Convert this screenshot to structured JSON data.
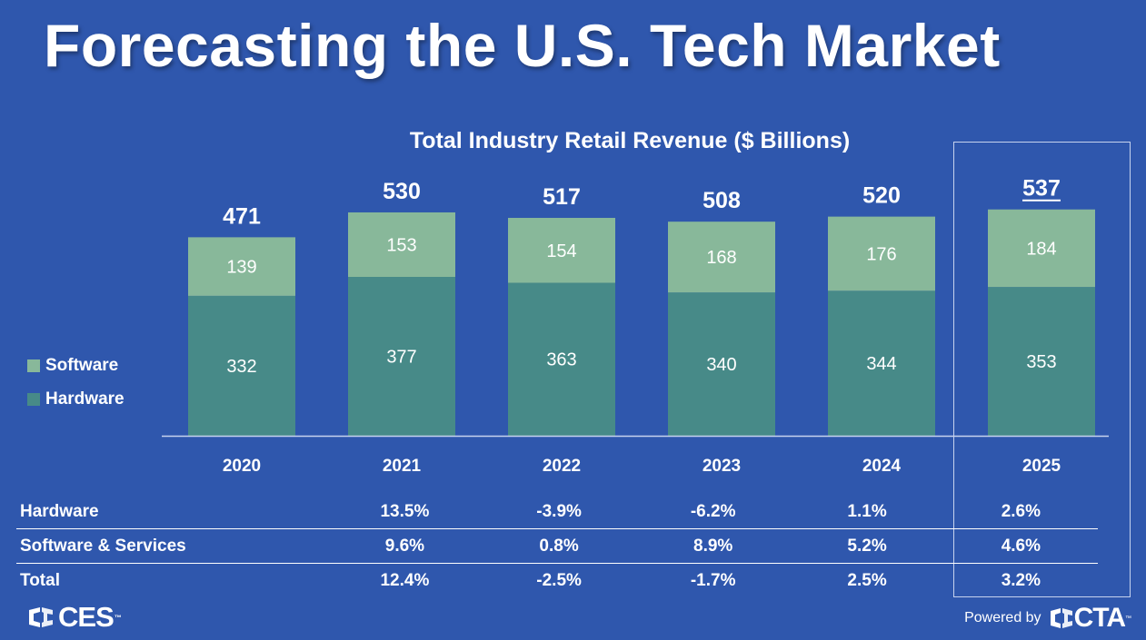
{
  "slide": {
    "title": "Forecasting the U.S. Tech Market"
  },
  "chart_data": {
    "type": "bar",
    "stacked": true,
    "title": "Total Industry Retail Revenue ($ Billions)",
    "categories": [
      "2020",
      "2021",
      "2022",
      "2023",
      "2024",
      "2025"
    ],
    "series": [
      {
        "name": "Hardware",
        "values": [
          332,
          377,
          363,
          340,
          344,
          353
        ],
        "color": "#478a88"
      },
      {
        "name": "Software",
        "values": [
          139,
          153,
          154,
          168,
          176,
          184
        ],
        "color": "#88b89a"
      }
    ],
    "totals": [
      "471",
      "530",
      "517",
      "508",
      "520",
      "537"
    ],
    "highlighted_category": "2025",
    "legend_position": "left",
    "grid": false,
    "ylim": [
      0,
      560
    ]
  },
  "growth_table": {
    "rows": [
      {
        "label": "Hardware",
        "values": [
          "",
          "13.5%",
          "-3.9%",
          "-6.2%",
          "1.1%",
          "2.6%"
        ]
      },
      {
        "label": "Software & Services",
        "values": [
          "",
          "9.6%",
          "0.8%",
          "8.9%",
          "5.2%",
          "4.6%"
        ]
      },
      {
        "label": "Total",
        "values": [
          "",
          "12.4%",
          "-2.5%",
          "-1.7%",
          "2.5%",
          "3.2%"
        ]
      }
    ]
  },
  "footer": {
    "ces_logo_text": "CES",
    "ces_tm": "™",
    "powered_by": "Powered by",
    "cta_logo_text": "CTA",
    "cta_tm": "™"
  },
  "colors": {
    "background": "#2f57ad",
    "hardware": "#478a88",
    "software": "#88b89a",
    "text": "#ffffff"
  }
}
